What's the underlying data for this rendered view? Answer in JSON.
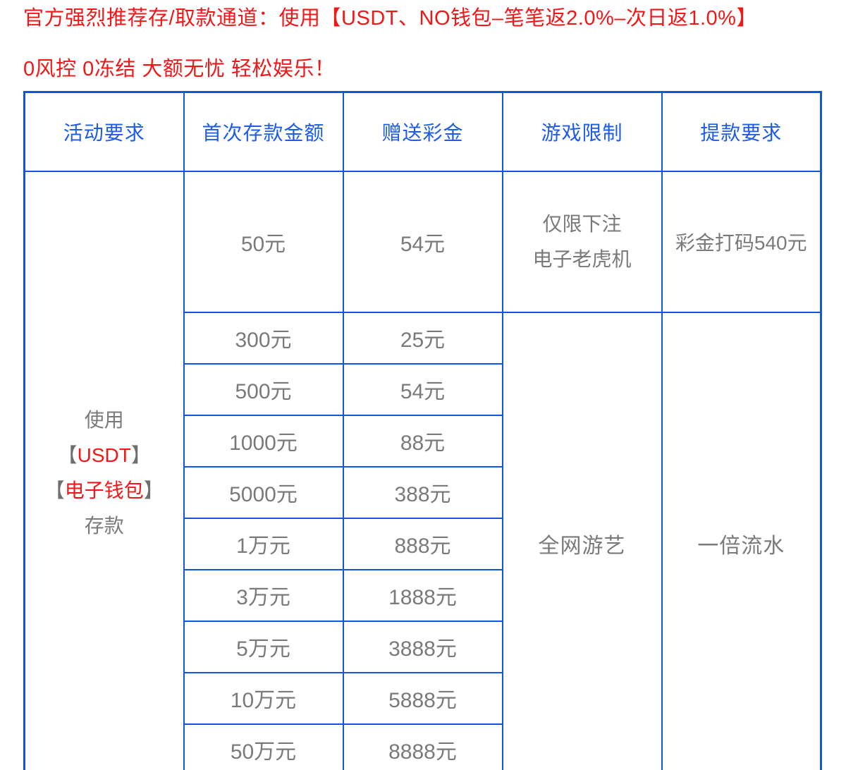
{
  "promo": {
    "line1": "官方强烈推荐存/取款通道：使用【USDT、NO钱包–笔笔返2.0%–次日返1.0%】",
    "line2": "0风控 0冻结 大额无忧 轻松娱乐！"
  },
  "colors": {
    "promo_red": "#f21717",
    "table_border_blue": "#1254dd",
    "header_text_blue": "#1c5ce6",
    "cell_text_gray": "#7a7a7a",
    "bracket_gray": "#6f6f6f"
  },
  "table": {
    "headers": {
      "activity": "活动要求",
      "first_deposit": "首次存款金额",
      "bonus": "赠送彩金",
      "game_limit": "游戏限制",
      "withdrawal": "提款要求"
    },
    "activity_cell": {
      "line_top": "使用",
      "bracket_open": "【",
      "red_text_1": "USDT",
      "red_text_2": "电子钱包",
      "bracket_close": "】",
      "line_bottom": "存款"
    },
    "first_tier": {
      "deposit": "50元",
      "bonus": "54元",
      "game_limit_line1": "仅限下注",
      "game_limit_line2": "电子老虎机",
      "withdrawal": "彩金打码540元"
    },
    "tiers": [
      {
        "deposit": "300元",
        "bonus": "25元"
      },
      {
        "deposit": "500元",
        "bonus": "54元"
      },
      {
        "deposit": "1000元",
        "bonus": "88元"
      },
      {
        "deposit": "5000元",
        "bonus": "388元"
      },
      {
        "deposit": "1万元",
        "bonus": "888元"
      },
      {
        "deposit": "3万元",
        "bonus": "1888元"
      },
      {
        "deposit": "5万元",
        "bonus": "3888元"
      },
      {
        "deposit": "10万元",
        "bonus": "5888元"
      },
      {
        "deposit": "50万元",
        "bonus": "8888元"
      }
    ],
    "merged_game_limit": "全网游艺",
    "merged_withdrawal": "一倍流水"
  }
}
